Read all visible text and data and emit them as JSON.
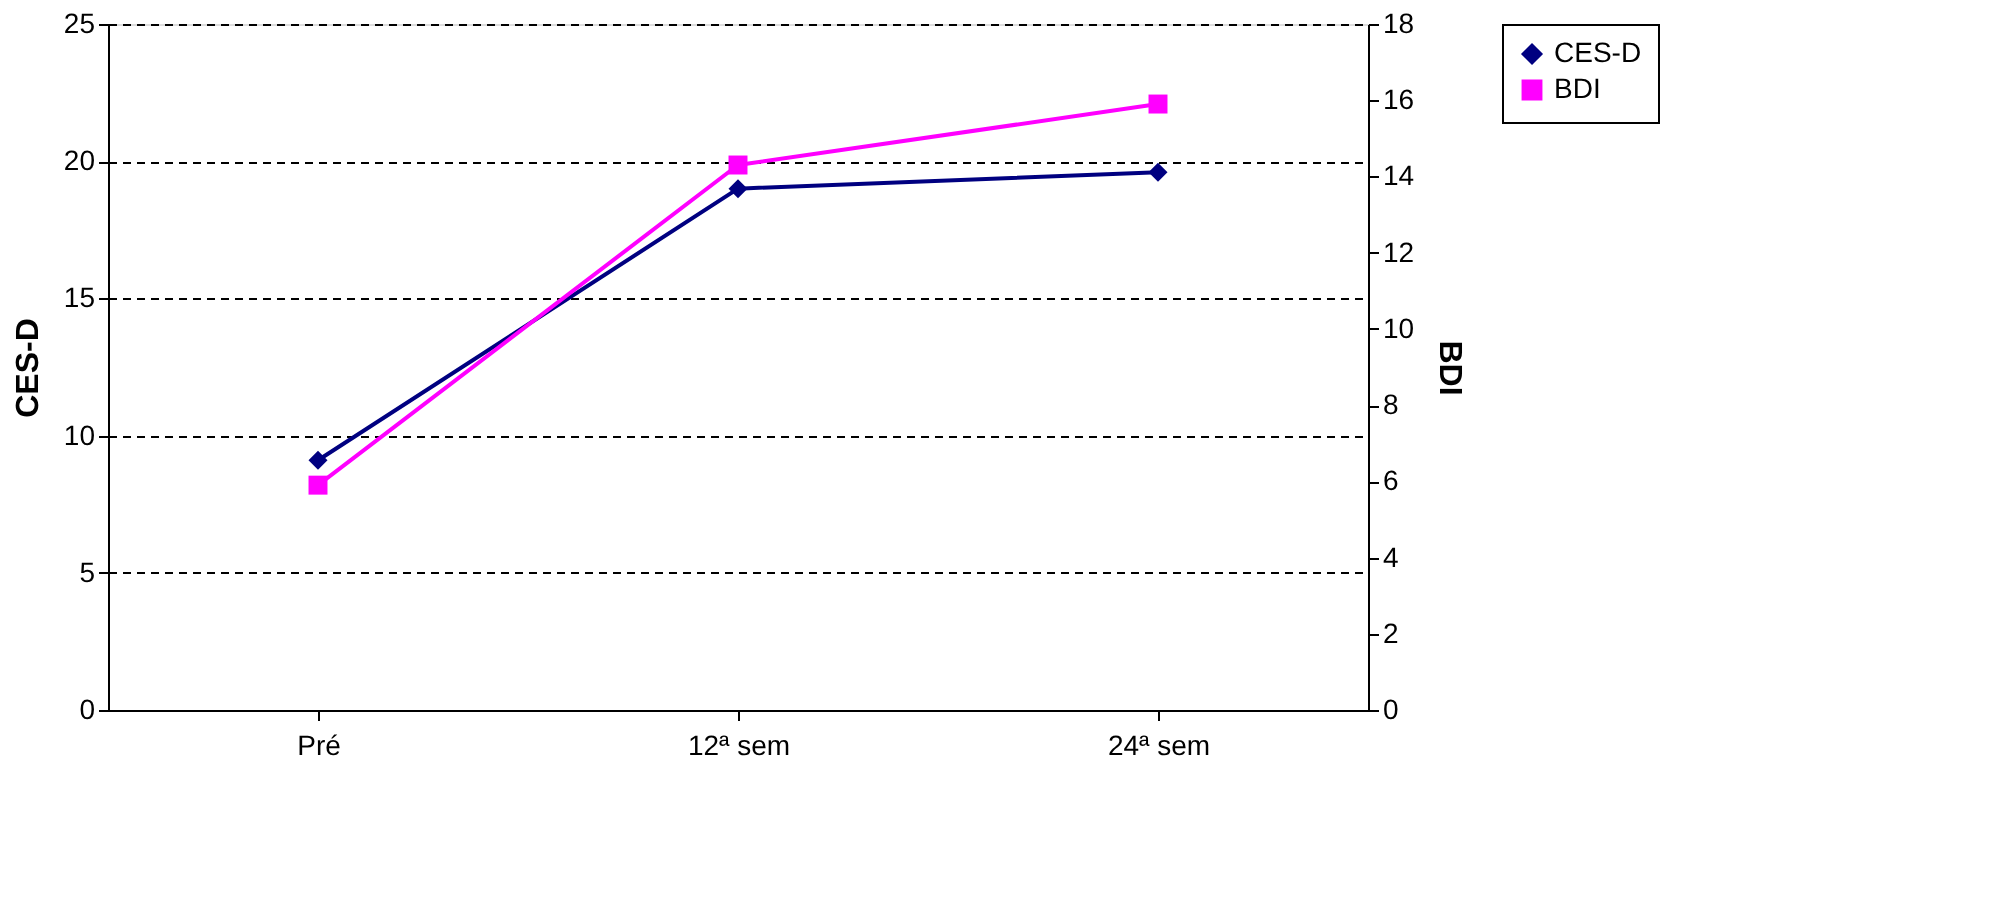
{
  "chart_data": {
    "type": "line",
    "categories": [
      "Pré",
      "12ª sem",
      "24ª sem"
    ],
    "ylabel": "CES-D",
    "y2label": "BDI",
    "ylim": [
      0,
      25
    ],
    "yticks": [
      0,
      5,
      10,
      15,
      20,
      25
    ],
    "y2lim": [
      0,
      18
    ],
    "y2ticks": [
      0,
      2,
      4,
      6,
      8,
      10,
      12,
      14,
      16,
      18
    ],
    "series": [
      {
        "name": "CES-D",
        "color": "#000080",
        "marker": "diamond",
        "values": [
          9.1,
          19.0,
          19.6
        ]
      },
      {
        "name": "BDI",
        "color": "#ff00ff",
        "marker": "square",
        "axis": "y2",
        "values": [
          5.9,
          14.3,
          15.9
        ]
      }
    ],
    "grid": "y",
    "legend": "right",
    "line_style": "solid"
  }
}
